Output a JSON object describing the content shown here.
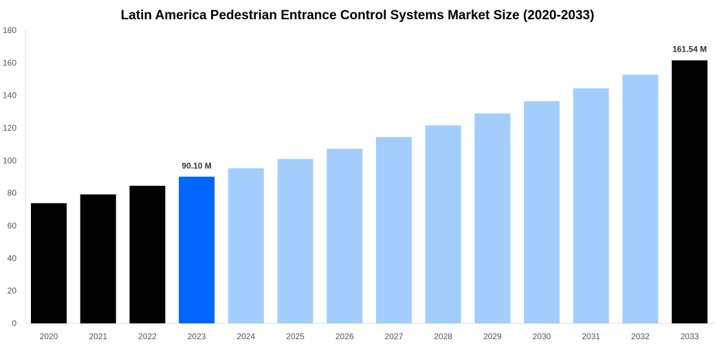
{
  "chart_data": {
    "type": "bar",
    "title": "Latin America Pedestrian Entrance Control Systems Market Size (2020-2033)",
    "xlabel": "",
    "ylabel": "",
    "categories": [
      "2020",
      "2021",
      "2022",
      "2023",
      "2024",
      "2025",
      "2026",
      "2027",
      "2028",
      "2029",
      "2030",
      "2031",
      "2032",
      "2033"
    ],
    "values": [
      73.8,
      79.2,
      84.5,
      90.1,
      95.3,
      100.9,
      107.2,
      114.4,
      121.6,
      128.9,
      136.4,
      144.4,
      152.7,
      161.54
    ],
    "colors": [
      "#000000",
      "#000000",
      "#000000",
      "#0066ff",
      "#a3cdfd",
      "#a3cdfd",
      "#a3cdfd",
      "#a3cdfd",
      "#a3cdfd",
      "#a3cdfd",
      "#a3cdfd",
      "#a3cdfd",
      "#a3cdfd",
      "#000000"
    ],
    "data_labels": {
      "3": "90.10 M",
      "13": "161.54 M"
    },
    "ylim": [
      0,
      180
    ],
    "yticks": [
      0,
      20,
      40,
      60,
      80,
      100,
      120,
      140,
      160,
      180
    ],
    "grid": false,
    "legend": "none"
  }
}
